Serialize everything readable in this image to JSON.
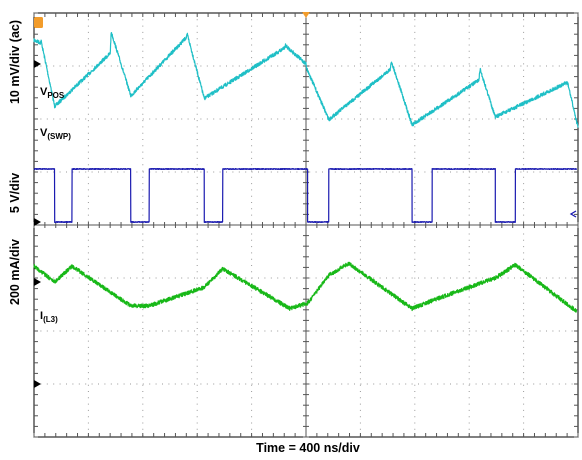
{
  "chart_data": {
    "type": "line",
    "title": "",
    "xlabel": "Time = 400 ns/div",
    "grid": true,
    "divisions": {
      "x": 10,
      "y": 8
    },
    "x_range_div": [
      0,
      10
    ],
    "x_unit": "div",
    "y_labels": [
      {
        "text": "10 mV/div (ac)",
        "channel": "vpos"
      },
      {
        "text": "5 V/div",
        "channel": "vswp"
      },
      {
        "text": "200 mA/div",
        "channel": "il3"
      }
    ],
    "series": [
      {
        "name": "V_POS",
        "label_main": "V",
        "label_sub": "POS",
        "color": "#1fbfc6",
        "units": "mV",
        "scale_per_div": 10,
        "x": [
          0.0,
          0.12,
          0.13,
          0.38,
          1.4,
          1.42,
          1.78,
          2.8,
          2.82,
          3.13,
          4.6,
          4.62,
          5.0,
          5.02,
          5.42,
          6.55,
          6.57,
          6.95,
          8.18,
          8.2,
          8.48,
          9.8,
          9.82,
          10.0
        ],
        "y": [
          4.5,
          4.0,
          4.4,
          -8.0,
          2.0,
          6.0,
          -6.0,
          5.0,
          5.5,
          -6.5,
          3.0,
          3.5,
          0.0,
          -1.0,
          -10.5,
          -1.0,
          0.5,
          -11.5,
          -3.0,
          -1.0,
          -10.0,
          -3.5,
          -4.0,
          -12.0
        ]
      },
      {
        "name": "V_(SWP)",
        "label_main": "V",
        "label_sub": "(SWP)",
        "color": "#1a1ab0",
        "units": "V",
        "scale_per_div": 5,
        "x": [
          0.0,
          0.38,
          0.38,
          0.7,
          0.7,
          1.78,
          1.78,
          2.12,
          2.12,
          3.13,
          3.13,
          3.47,
          3.47,
          5.03,
          5.03,
          5.42,
          5.42,
          6.95,
          6.95,
          7.32,
          7.32,
          8.48,
          8.48,
          8.85,
          8.85,
          9.97
        ],
        "y": [
          5.0,
          5.0,
          0.0,
          0.0,
          5.0,
          5.0,
          0.0,
          0.0,
          5.0,
          5.0,
          0.0,
          0.0,
          5.0,
          5.0,
          0.0,
          0.0,
          5.0,
          5.0,
          0.0,
          0.0,
          5.0,
          5.0,
          0.0,
          0.0,
          5.0,
          5.0
        ]
      },
      {
        "name": "I_(L3)",
        "label_main": "I",
        "label_sub": "(L3)",
        "color": "#18b818",
        "units": "mA",
        "scale_per_div": 200,
        "x": [
          0.0,
          0.38,
          0.7,
          1.78,
          2.12,
          3.13,
          3.47,
          4.7,
          5.03,
          5.42,
          5.78,
          6.95,
          7.32,
          8.48,
          8.85,
          9.97
        ],
        "y": [
          60,
          0,
          60,
          -90,
          -90,
          -20,
          50,
          -100,
          -80,
          25,
          70,
          -100,
          -70,
          15,
          65,
          -110
        ]
      }
    ]
  }
}
